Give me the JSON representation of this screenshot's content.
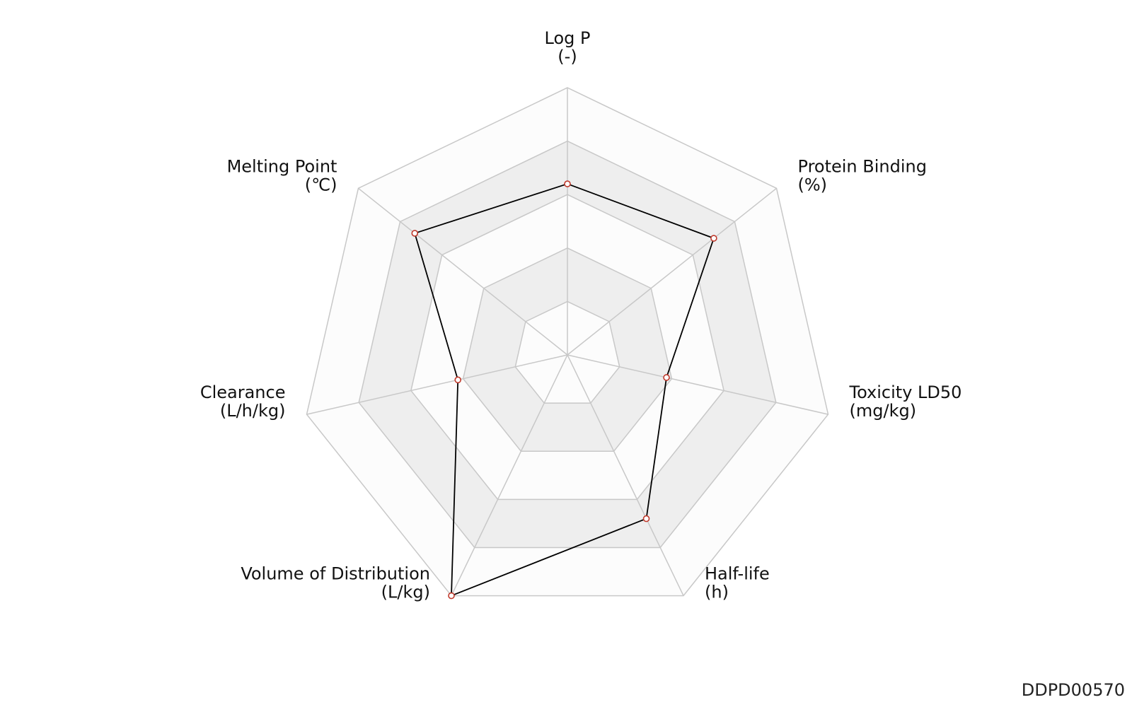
{
  "chart_data": {
    "type": "radar",
    "axes": [
      {
        "name": "Log P",
        "unit": "(-)"
      },
      {
        "name": "Protein Binding",
        "unit": "(%)"
      },
      {
        "name": "Toxicity LD50",
        "unit": "(mg/kg)"
      },
      {
        "name": "Half-life",
        "unit": "(h)"
      },
      {
        "name": "Volume of Distribution",
        "unit": "(L/kg)"
      },
      {
        "name": "Clearance",
        "unit": "(L/h/kg)"
      },
      {
        "name": "Melting Point",
        "unit": "(℃)"
      }
    ],
    "range": [
      0,
      1
    ],
    "rings": 5,
    "values": [
      0.64,
      0.7,
      0.38,
      0.68,
      1.0,
      0.42,
      0.73
    ],
    "line_color": "#000000",
    "marker_color": "#c0392b",
    "band_color": "#eeeeee",
    "grid_color": "#c8c8c8"
  },
  "watermark": "DDPD00570"
}
